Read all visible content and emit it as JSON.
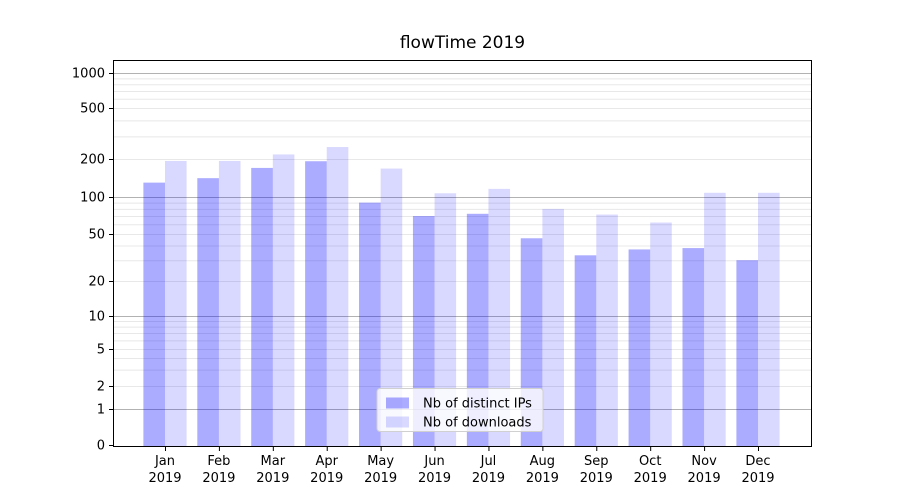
{
  "chart_data": {
    "type": "bar",
    "title": "flowTime 2019",
    "categories": [
      "Jan 2019",
      "Feb 2019",
      "Mar 2019",
      "Apr 2019",
      "May 2019",
      "Jun 2019",
      "Jul 2019",
      "Aug 2019",
      "Sep 2019",
      "Oct 2019",
      "Nov 2019",
      "Dec 2019"
    ],
    "series": [
      {
        "name": "Nb of distinct IPs",
        "color": "rgba(0,0,255,0.33)",
        "values": [
          130,
          141,
          170,
          192,
          90,
          70,
          73,
          46,
          33,
          37,
          38,
          30
        ]
      },
      {
        "name": "Nb of downloads",
        "color": "rgba(0,0,255,0.15)",
        "values": [
          193,
          193,
          217,
          248,
          168,
          107,
          116,
          80,
          72,
          62,
          108,
          108
        ]
      }
    ],
    "xlabel": "",
    "ylabel": "",
    "yscale": "symlog",
    "y_ticks": [
      0,
      1,
      2,
      5,
      10,
      20,
      50,
      100,
      200,
      500,
      1000
    ],
    "y_tick_labels": [
      "0",
      "1",
      "2",
      "5",
      "10",
      "20",
      "50",
      "100",
      "200",
      "500",
      "1000"
    ],
    "ylim": [
      0,
      1250
    ],
    "grid": true,
    "legend": {
      "position": "lower center",
      "labels": [
        "Nb of distinct IPs",
        "Nb of downloads"
      ]
    }
  },
  "colors": {
    "background": "#ffffff",
    "text": "#000000",
    "grid_major": "#b2b2b2",
    "grid_minor": "#e8e8e8",
    "spine": "#000000",
    "legend_border": "#d0d0d0",
    "legend_background": "rgba(255,255,255,0.8)"
  }
}
